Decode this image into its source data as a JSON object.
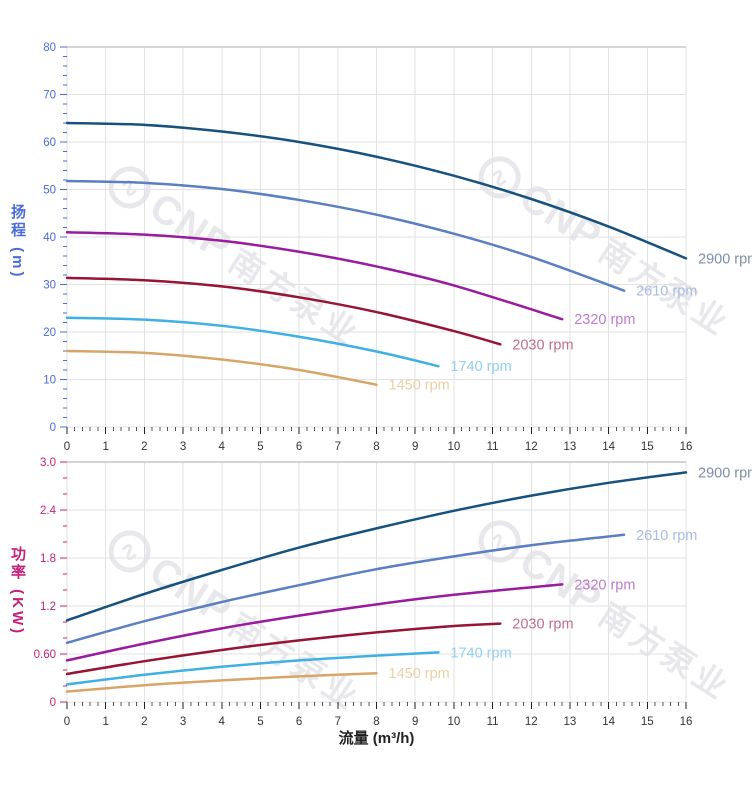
{
  "watermark": {
    "logo_glyph": "∿",
    "brand": "CNP",
    "brand_cn": "南方泵业"
  },
  "axis_titles": {
    "flow": "流量 (m³/h)",
    "head": "扬程 (m)",
    "power": "功率 (KW)"
  },
  "colors": {
    "grid": "#e2e2e2",
    "plot_border": "#d4d4d4",
    "head_axis": "#4a6bd8",
    "power_axis": "#c22178",
    "x_tick": "#222222",
    "x_minor_tick": "#555555",
    "x_label": "#333333"
  },
  "chart_data": [
    {
      "type": "line",
      "title": "",
      "xlabel": "流量 (m³/h)",
      "ylabel": "扬程 (m)",
      "xlim": [
        0,
        16
      ],
      "ylim": [
        0,
        80
      ],
      "x_major_step": 1,
      "x_minor_step": 0.2,
      "y_major_step": 10,
      "y_minor_step": 2,
      "grid": "on",
      "legend_position": "curve-ends",
      "x_tick_labels": [
        "0",
        "1",
        "2",
        "3",
        "4",
        "5",
        "6",
        "7",
        "8",
        "9",
        "10",
        "11",
        "12",
        "13",
        "14",
        "15",
        "16"
      ],
      "y_tick_labels": [
        "0",
        "10",
        "20",
        "30",
        "40",
        "50",
        "60",
        "70",
        "80"
      ],
      "series": [
        {
          "name": "2900 rpm",
          "color": "#17517e",
          "label_color": "#7b8ea6",
          "x": [
            0,
            2,
            4,
            6,
            8,
            10,
            12,
            14,
            16
          ],
          "y": [
            64,
            63.6,
            62.2,
            60,
            56.9,
            52.9,
            48,
            42.2,
            35.5
          ]
        },
        {
          "name": "2610 rpm",
          "color": "#5a7fc2",
          "label_color": "#a9bce2",
          "x": [
            0,
            2,
            4,
            6,
            8,
            10,
            12,
            14.4
          ],
          "y": [
            51.8,
            51.4,
            50.1,
            47.8,
            44.7,
            40.7,
            35.8,
            28.7
          ]
        },
        {
          "name": "2320 rpm",
          "color": "#991b9e",
          "label_color": "#bd7cca",
          "x": [
            0,
            2,
            4,
            6,
            8,
            10,
            12.8
          ],
          "y": [
            41,
            40.5,
            39.2,
            36.9,
            33.8,
            29.8,
            22.7
          ]
        },
        {
          "name": "2030 rpm",
          "color": "#971434",
          "label_color": "#c06e86",
          "x": [
            0,
            2,
            4,
            6,
            8,
            10,
            11.2
          ],
          "y": [
            31.4,
            30.9,
            29.6,
            27.3,
            24.2,
            20.2,
            17.4
          ]
        },
        {
          "name": "1740 rpm",
          "color": "#3fb0e4",
          "label_color": "#90d0f0",
          "x": [
            0,
            2,
            4,
            6,
            8,
            9.6
          ],
          "y": [
            23,
            22.6,
            21.3,
            19,
            15.9,
            12.8
          ]
        },
        {
          "name": "1450 rpm",
          "color": "#d7a567",
          "label_color": "#ecd0a4",
          "x": [
            0,
            2,
            4,
            6,
            8
          ],
          "y": [
            16,
            15.6,
            14.2,
            12,
            8.9
          ]
        }
      ]
    },
    {
      "type": "line",
      "title": "",
      "xlabel": "流量 (m³/h)",
      "ylabel": "功率 (KW)",
      "xlim": [
        0,
        16
      ],
      "ylim": [
        0,
        3.0
      ],
      "x_major_step": 1,
      "x_minor_step": 0.2,
      "y_major_step": 0.6,
      "y_minor_step": 0.2,
      "grid": "on",
      "legend_position": "curve-ends",
      "x_tick_labels": [
        "0",
        "1",
        "2",
        "3",
        "4",
        "5",
        "6",
        "7",
        "8",
        "9",
        "10",
        "11",
        "12",
        "13",
        "14",
        "15",
        "16"
      ],
      "y_tick_labels": [
        "0",
        "0.60",
        "1.2",
        "1.8",
        "2.4",
        "3.0"
      ],
      "series": [
        {
          "name": "2900 rpm",
          "color": "#17517e",
          "label_color": "#7b8ea6",
          "x": [
            0,
            2,
            4,
            6,
            8,
            10,
            12,
            14,
            16
          ],
          "y": [
            1.02,
            1.35,
            1.65,
            1.93,
            2.17,
            2.39,
            2.58,
            2.74,
            2.87
          ]
        },
        {
          "name": "2610 rpm",
          "color": "#5a7fc2",
          "label_color": "#a9bce2",
          "x": [
            0,
            2,
            4,
            6,
            8,
            10,
            12,
            14.4
          ],
          "y": [
            0.74,
            1.01,
            1.25,
            1.46,
            1.66,
            1.82,
            1.96,
            2.09
          ]
        },
        {
          "name": "2320 rpm",
          "color": "#991b9e",
          "label_color": "#bd7cca",
          "x": [
            0,
            2,
            4,
            6,
            8,
            10,
            12.8
          ],
          "y": [
            0.52,
            0.73,
            0.92,
            1.08,
            1.22,
            1.34,
            1.47
          ]
        },
        {
          "name": "2030 rpm",
          "color": "#971434",
          "label_color": "#c06e86",
          "x": [
            0,
            2,
            4,
            6,
            8,
            10,
            11.2
          ],
          "y": [
            0.35,
            0.51,
            0.65,
            0.77,
            0.87,
            0.95,
            0.98
          ]
        },
        {
          "name": "1740 rpm",
          "color": "#3fb0e4",
          "label_color": "#90d0f0",
          "x": [
            0,
            2,
            4,
            6,
            8,
            9.6
          ],
          "y": [
            0.22,
            0.34,
            0.44,
            0.52,
            0.58,
            0.62
          ]
        },
        {
          "name": "1450 rpm",
          "color": "#d7a567",
          "label_color": "#ecd0a4",
          "x": [
            0,
            2,
            4,
            6,
            8
          ],
          "y": [
            0.13,
            0.21,
            0.27,
            0.32,
            0.36
          ]
        }
      ]
    }
  ]
}
